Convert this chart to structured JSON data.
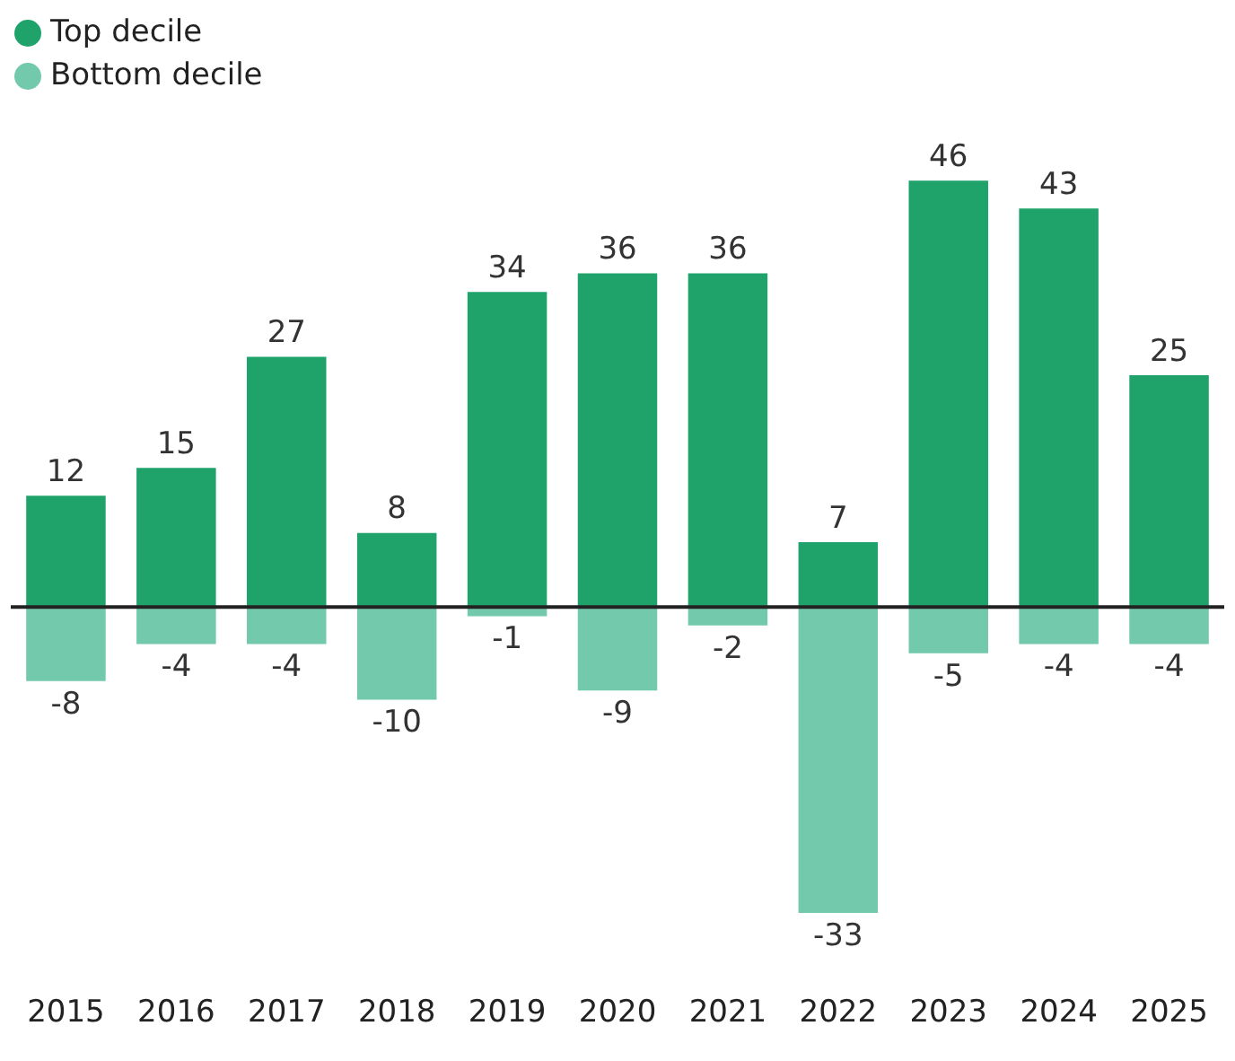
{
  "chart_data": {
    "type": "bar",
    "stacked": true,
    "categories": [
      "2015",
      "2016",
      "2017",
      "2018",
      "2019",
      "2020",
      "2021",
      "2022",
      "2023",
      "2024",
      "2025"
    ],
    "series": [
      {
        "name": "Top decile",
        "color": "#1fa36b",
        "values": [
          12,
          15,
          27,
          8,
          34,
          36,
          36,
          7,
          46,
          43,
          25
        ]
      },
      {
        "name": "Bottom decile",
        "color": "#72c9ac",
        "values": [
          -8,
          -4,
          -4,
          -10,
          -1,
          -9,
          -2,
          -33,
          -5,
          -4,
          -4
        ]
      }
    ],
    "tick_labels": "x",
    "data_labels": true,
    "grid": false,
    "legend": "top left"
  }
}
